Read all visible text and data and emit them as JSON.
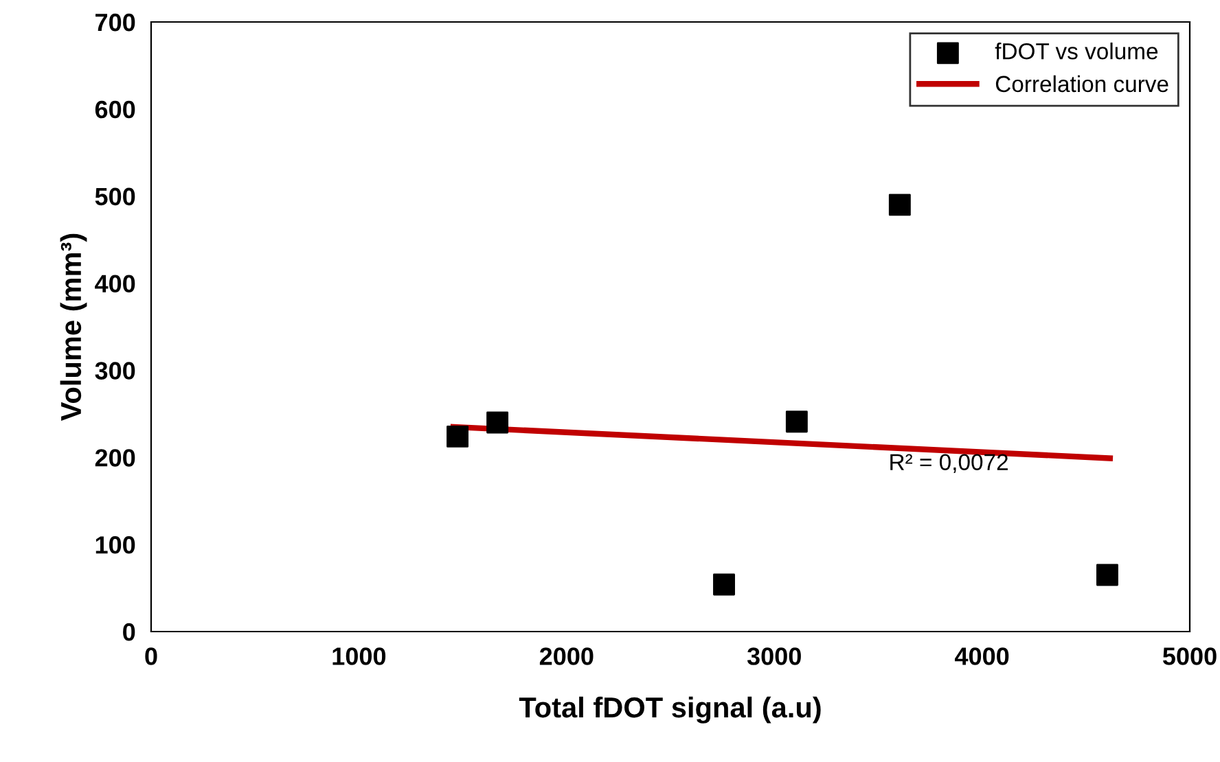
{
  "chart_data": {
    "type": "scatter",
    "xlabel": "Total fDOT signal (a.u)",
    "ylabel": "Volume (mm³)",
    "series": [
      {
        "name": "fDOT vs volume",
        "color": "#000000",
        "marker": "square",
        "x": [
          1475,
          1667,
          2758,
          3108,
          3604,
          4603
        ],
        "values": [
          224,
          240,
          54,
          241,
          490,
          65
        ]
      },
      {
        "name": "Correlation curve",
        "type": "line",
        "color": "#c00000",
        "marker": "none",
        "x": [
          1455,
          4616
        ],
        "values": [
          235,
          199
        ]
      }
    ],
    "annotations": [
      "R² = 0,0072"
    ],
    "xlim": [
      0,
      5000
    ],
    "xticks": [
      0,
      1000,
      2000,
      3000,
      4000,
      5000
    ],
    "ylim": [
      0,
      700
    ],
    "yticks": [
      0,
      100,
      200,
      300,
      400,
      500,
      600,
      700
    ],
    "grid": false,
    "legend": "top right"
  }
}
